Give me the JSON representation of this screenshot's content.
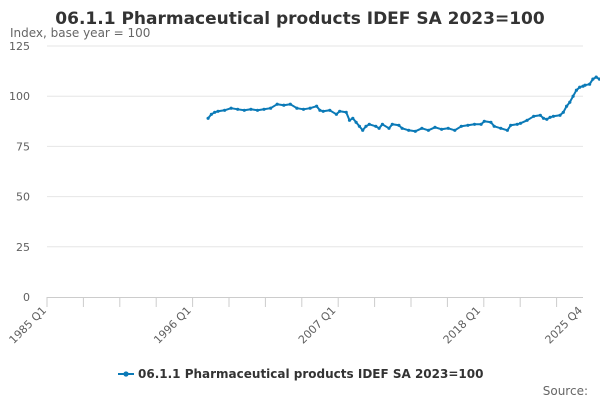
{
  "chart_data": {
    "type": "line",
    "title": "06.1.1 Pharmaceutical products IDEF SA 2023=100",
    "ylabel": "Index, base year = 100",
    "xlabel": "",
    "ylim": [
      0,
      125
    ],
    "yticks": [
      0,
      25,
      50,
      75,
      100,
      125
    ],
    "xlim": [
      1985.0,
      2025.75
    ],
    "xticks": [
      {
        "label": "1985 Q1",
        "value": 1985.0
      },
      {
        "label": "1996 Q1",
        "value": 1996.0
      },
      {
        "label": "2007 Q1",
        "value": 2007.0
      },
      {
        "label": "2018 Q1",
        "value": 2018.0
      },
      {
        "label": "2025 Q4",
        "value": 2025.75
      }
    ],
    "grid": true,
    "legend_position": "bottom",
    "colors": {
      "series": "#0b7ab7",
      "grid": "#e6e6e6",
      "axis": "#cccccc"
    },
    "series": [
      {
        "name": "06.1.1 Pharmaceutical products IDEF SA 2023=100",
        "points": [
          [
            1997.25,
            89
          ],
          [
            1997.5,
            91
          ],
          [
            1997.75,
            92
          ],
          [
            1998.0,
            92.5
          ],
          [
            1998.5,
            93
          ],
          [
            1999.0,
            94
          ],
          [
            1999.5,
            93.5
          ],
          [
            2000.0,
            93
          ],
          [
            2000.5,
            93.5
          ],
          [
            2001.0,
            93
          ],
          [
            2001.5,
            93.5
          ],
          [
            2002.0,
            94
          ],
          [
            2002.5,
            96
          ],
          [
            2003.0,
            95.5
          ],
          [
            2003.5,
            96
          ],
          [
            2004.0,
            94
          ],
          [
            2004.5,
            93.5
          ],
          [
            2005.0,
            94
          ],
          [
            2005.5,
            95
          ],
          [
            2005.75,
            93
          ],
          [
            2006.0,
            92.5
          ],
          [
            2006.5,
            93
          ],
          [
            2007.0,
            91
          ],
          [
            2007.25,
            92.5
          ],
          [
            2007.75,
            92
          ],
          [
            2008.0,
            88
          ],
          [
            2008.25,
            89
          ],
          [
            2008.5,
            87
          ],
          [
            2008.75,
            85
          ],
          [
            2009.0,
            83
          ],
          [
            2009.25,
            85
          ],
          [
            2009.5,
            86
          ],
          [
            2010.0,
            85
          ],
          [
            2010.25,
            84
          ],
          [
            2010.5,
            86
          ],
          [
            2011.0,
            84
          ],
          [
            2011.25,
            86
          ],
          [
            2011.75,
            85.5
          ],
          [
            2012.0,
            84
          ],
          [
            2012.5,
            83
          ],
          [
            2013.0,
            82.5
          ],
          [
            2013.5,
            84
          ],
          [
            2014.0,
            83
          ],
          [
            2014.5,
            84.5
          ],
          [
            2015.0,
            83.5
          ],
          [
            2015.5,
            84
          ],
          [
            2016.0,
            83
          ],
          [
            2016.5,
            85
          ],
          [
            2017.0,
            85.5
          ],
          [
            2017.5,
            86
          ],
          [
            2018.0,
            86
          ],
          [
            2018.25,
            87.5
          ],
          [
            2018.75,
            87
          ],
          [
            2019.0,
            85
          ],
          [
            2019.5,
            84
          ],
          [
            2020.0,
            83
          ],
          [
            2020.25,
            85.5
          ],
          [
            2020.75,
            86
          ],
          [
            2021.0,
            86.5
          ],
          [
            2021.5,
            88
          ],
          [
            2022.0,
            90
          ],
          [
            2022.5,
            90.5
          ],
          [
            2022.75,
            89
          ],
          [
            2023.0,
            88.5
          ],
          [
            2023.25,
            89.5
          ],
          [
            2023.5,
            90
          ],
          [
            2024.0,
            90.5
          ],
          [
            2024.25,
            92
          ],
          [
            2024.5,
            95
          ],
          [
            2024.75,
            97
          ],
          [
            2025.0,
            100
          ],
          [
            2025.25,
            103
          ],
          [
            2025.5,
            104.5
          ],
          [
            2025.75,
            105
          ],
          [
            2025.9,
            105.5
          ],
          [
            2026.25,
            106
          ],
          [
            2026.5,
            108.5
          ],
          [
            2026.75,
            109.5
          ],
          [
            2027.0,
            108.5
          ],
          [
            2027.2,
            107.5
          ]
        ]
      }
    ],
    "source_label": "Source:"
  }
}
